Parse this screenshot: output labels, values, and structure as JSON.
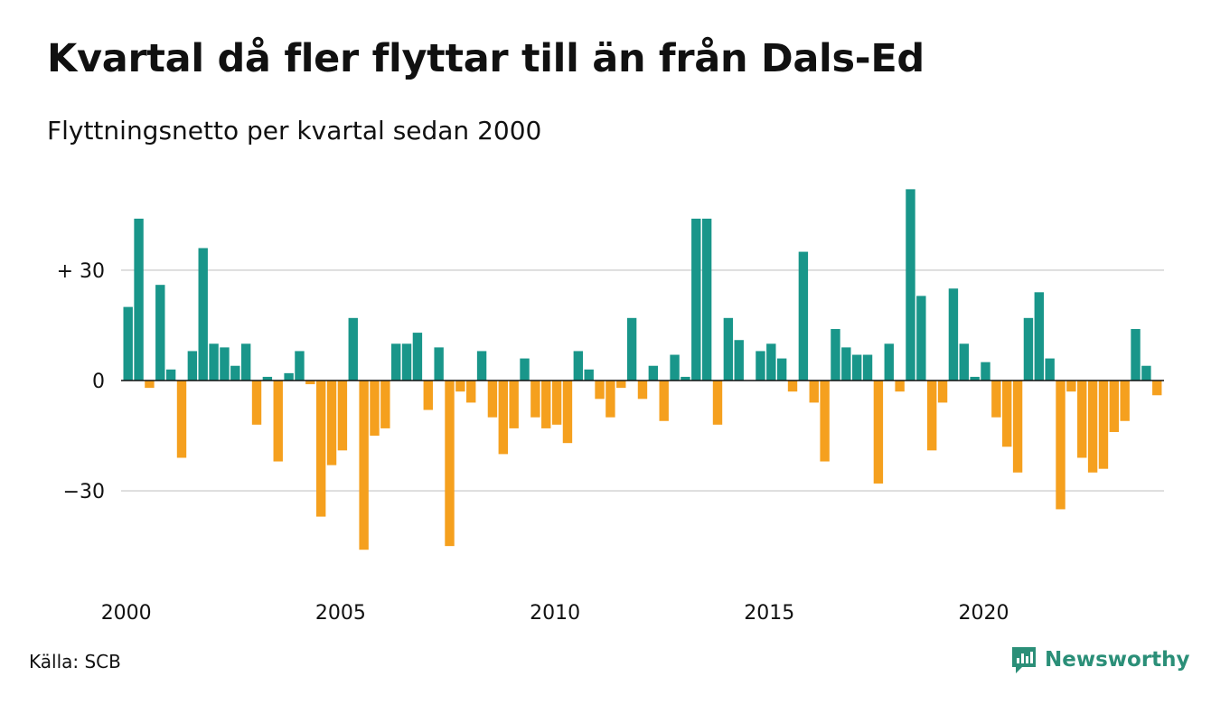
{
  "header": {
    "title": "Kvartal då fler flyttar till än från Dals-Ed",
    "subtitle": "Flyttningsnetto per kvartal sedan 2000"
  },
  "footer": {
    "source": "Källa: SCB",
    "brand": "Newsworthy",
    "brand_icon": "newsworthy-logo-icon"
  },
  "colors": {
    "positive": "#19968a",
    "negative": "#f5a01e",
    "grid": "#dddddd",
    "brand": "#2b8f78"
  },
  "chart_data": {
    "type": "bar",
    "title": "Kvartal då fler flyttar till än från Dals-Ed",
    "subtitle": "Flyttningsnetto per kvartal sedan 2000",
    "xlabel": "",
    "ylabel": "",
    "x_start": "2000 Q1",
    "x_ticks": [
      "2000",
      "2005",
      "2010",
      "2015",
      "2020"
    ],
    "y_ticks": [
      {
        "value": 30,
        "label": "+ 30"
      },
      {
        "value": 0,
        "label": "0"
      },
      {
        "value": -30,
        "label": "−30"
      }
    ],
    "ylim": [
      -55,
      55
    ],
    "grid": true,
    "legend": "none",
    "values": [
      20,
      44,
      -2,
      26,
      3,
      -21,
      8,
      36,
      10,
      9,
      4,
      10,
      -12,
      1,
      -22,
      2,
      8,
      -1,
      -37,
      -23,
      -19,
      17,
      -46,
      -15,
      -13,
      10,
      10,
      13,
      -8,
      9,
      -45,
      -3,
      -6,
      8,
      -10,
      -20,
      -13,
      6,
      -10,
      -13,
      -12,
      -17,
      8,
      3,
      -5,
      -10,
      -2,
      17,
      -5,
      4,
      -11,
      7,
      1,
      44,
      44,
      -12,
      17,
      11,
      0,
      8,
      10,
      6,
      -3,
      35,
      -6,
      -22,
      14,
      9,
      7,
      7,
      -28,
      10,
      -3,
      52,
      23,
      -19,
      -6,
      25,
      10,
      1,
      5,
      -10,
      -18,
      -25,
      17,
      24,
      6,
      -35,
      -3,
      -21,
      -25,
      -24,
      -14,
      -11,
      14,
      4,
      -4
    ]
  }
}
